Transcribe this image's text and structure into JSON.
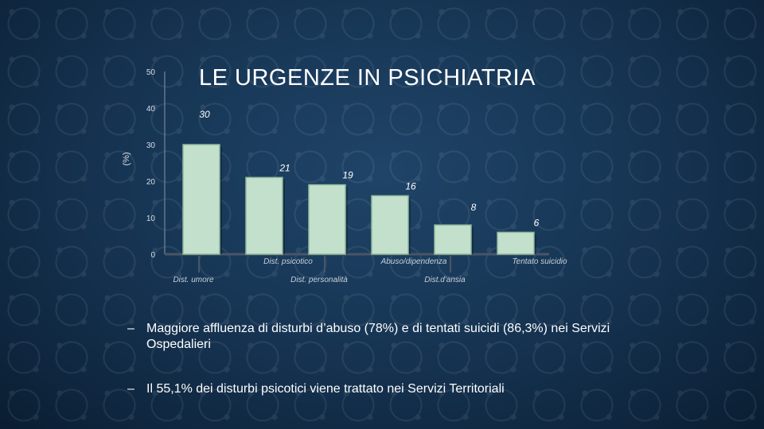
{
  "title": "LE URGENZE IN PSICHIATRIA",
  "chart_data": {
    "type": "bar",
    "categories": [
      "Dist. umore",
      "Dist. psicotico",
      "Dist. personalità",
      "Abuso/dipendenza",
      "Dist.d'ansia",
      "Tentato suicidio"
    ],
    "values": [
      30,
      21,
      19,
      16,
      8,
      6
    ],
    "value_labels": [
      "30",
      "21",
      "19",
      "16",
      "8",
      "6"
    ],
    "ylabel": "(%)",
    "xlabel": "",
    "ylim": [
      0,
      50
    ],
    "yticks": [
      0,
      10,
      20,
      30,
      40,
      50
    ],
    "grid": false,
    "legend": "none",
    "bar_color": "#c2e0cc",
    "bar_stroke": "#8fb79c"
  },
  "bullets": [
    {
      "dash": "–",
      "text": "Maggiore affluenza di disturbi d’abuso (78%) e di tentati suicidi (86,3%) nei Servizi Ospedalieri"
    },
    {
      "dash": "–",
      "text": "Il 55,1% dei disturbi psicotici viene trattato nei Servizi Territoriali"
    }
  ]
}
